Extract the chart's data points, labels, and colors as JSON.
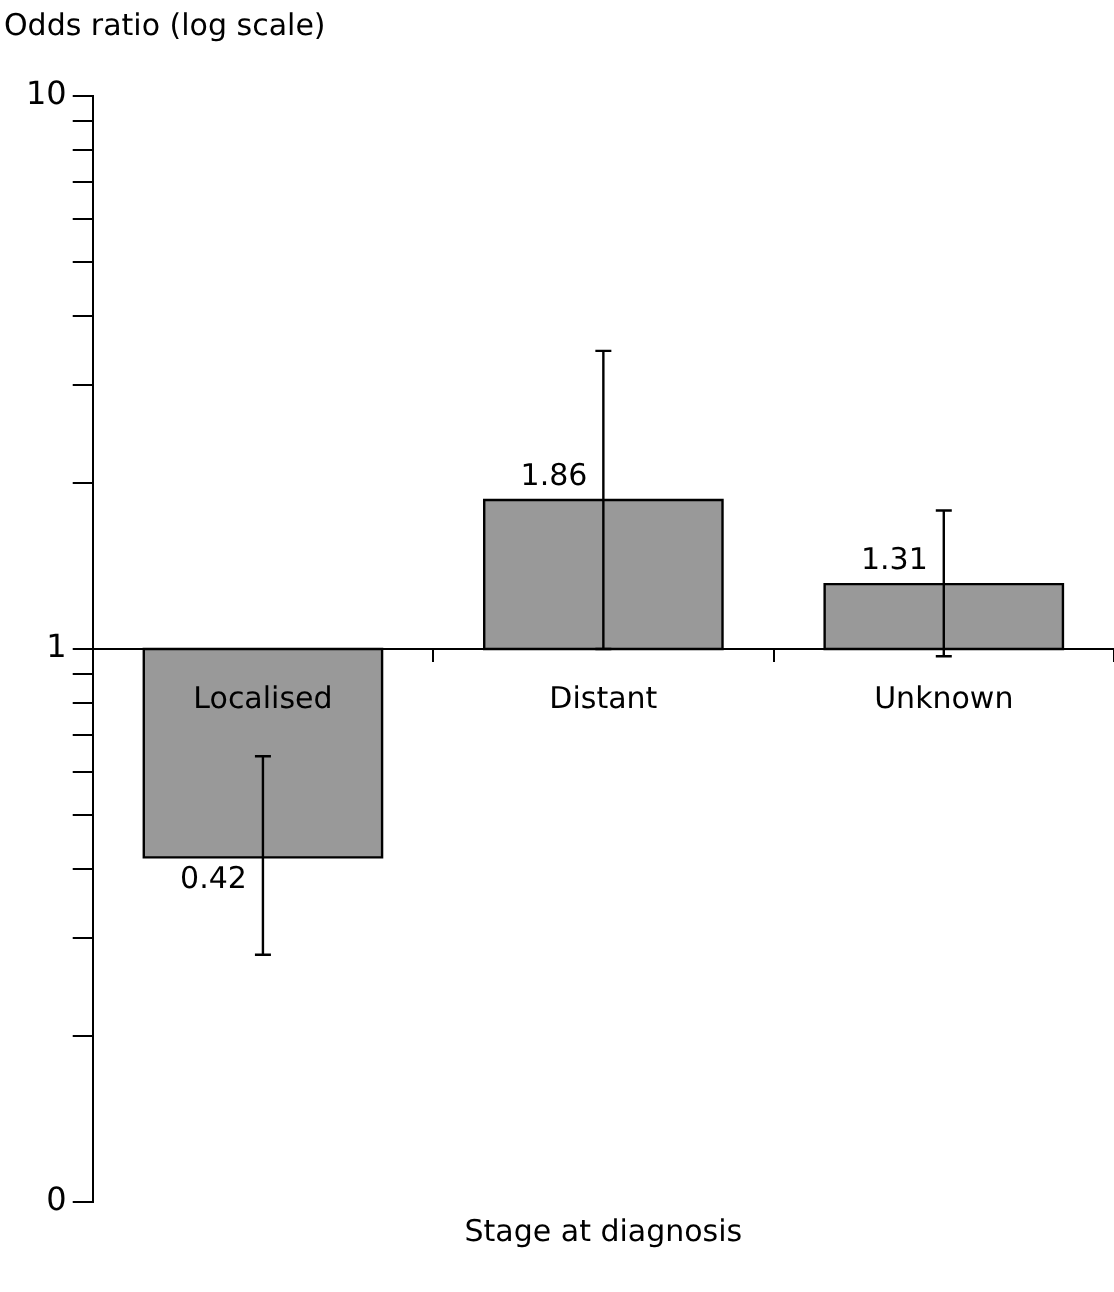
{
  "chart_data": {
    "type": "bar",
    "ylabel": "Odds ratio (log scale)",
    "xlabel": "Stage at diagnosis",
    "categories": [
      "Localised",
      "Distant",
      "Unknown"
    ],
    "values": [
      -0.58,
      0.86,
      0.31
    ],
    "base": [
      1,
      1,
      1
    ],
    "value_labels": [
      "0.42",
      "1.86",
      "1.31"
    ],
    "errors": [
      [
        0.28,
        0.64
      ],
      [
        1.0,
        3.46
      ],
      [
        0.97,
        1.78
      ]
    ],
    "color": "#999999",
    "log": true,
    "grid": false,
    "legend": false,
    "ylim": [
      0.1,
      10
    ],
    "yticks": [
      {
        "value": 0.1,
        "label": "0"
      },
      {
        "value": 0.2,
        "label": null
      },
      {
        "value": 0.3,
        "label": null
      },
      {
        "value": 0.4,
        "label": null
      },
      {
        "value": 0.5,
        "label": null
      },
      {
        "value": 0.6,
        "label": null
      },
      {
        "value": 0.7,
        "label": null
      },
      {
        "value": 0.8,
        "label": null
      },
      {
        "value": 0.9,
        "label": null
      },
      1,
      {
        "value": 2,
        "label": null
      },
      {
        "value": 3,
        "label": null
      },
      {
        "value": 4,
        "label": null
      },
      {
        "value": 5,
        "label": null
      },
      {
        "value": 6,
        "label": null
      },
      {
        "value": 7,
        "label": null
      },
      {
        "value": 8,
        "label": null
      },
      {
        "value": 9,
        "label": null
      },
      10
    ]
  }
}
